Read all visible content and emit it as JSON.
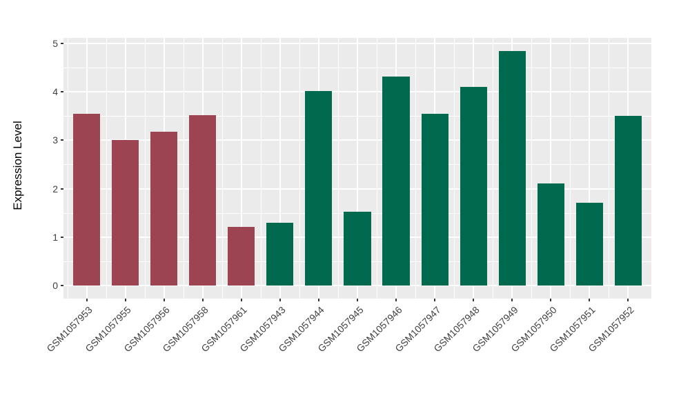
{
  "chart_data": {
    "type": "bar",
    "title": "",
    "xlabel": "",
    "ylabel": "Expression Level",
    "ylim": [
      0,
      5
    ],
    "yticks": [
      0,
      1,
      2,
      3,
      4,
      5
    ],
    "grid": "major and minor horizontal+vertical white gridlines on gray panel",
    "legend_position": "none",
    "categories": [
      "GSM1057953",
      "GSM1057955",
      "GSM1057956",
      "GSM1057958",
      "GSM1057961",
      "GSM1057943",
      "GSM1057944",
      "GSM1057945",
      "GSM1057946",
      "GSM1057947",
      "GSM1057948",
      "GSM1057949",
      "GSM1057950",
      "GSM1057951",
      "GSM1057952"
    ],
    "values": [
      3.54,
      3.01,
      3.17,
      3.51,
      1.21,
      1.3,
      4.01,
      1.53,
      4.31,
      3.54,
      4.1,
      4.84,
      2.11,
      1.71,
      3.5
    ],
    "bar_colors": [
      "#9C4451",
      "#9C4451",
      "#9C4451",
      "#9C4451",
      "#9C4451",
      "#01694E",
      "#01694E",
      "#01694E",
      "#01694E",
      "#01694E",
      "#01694E",
      "#01694E",
      "#01694E",
      "#01694E",
      "#01694E"
    ],
    "colors": {
      "group_red": "#9C4451",
      "group_green": "#01694E",
      "panel_background": "#EBEBEB",
      "gridline": "#FFFFFF",
      "tick_label": "#404040",
      "axis_title": "#000000"
    }
  }
}
